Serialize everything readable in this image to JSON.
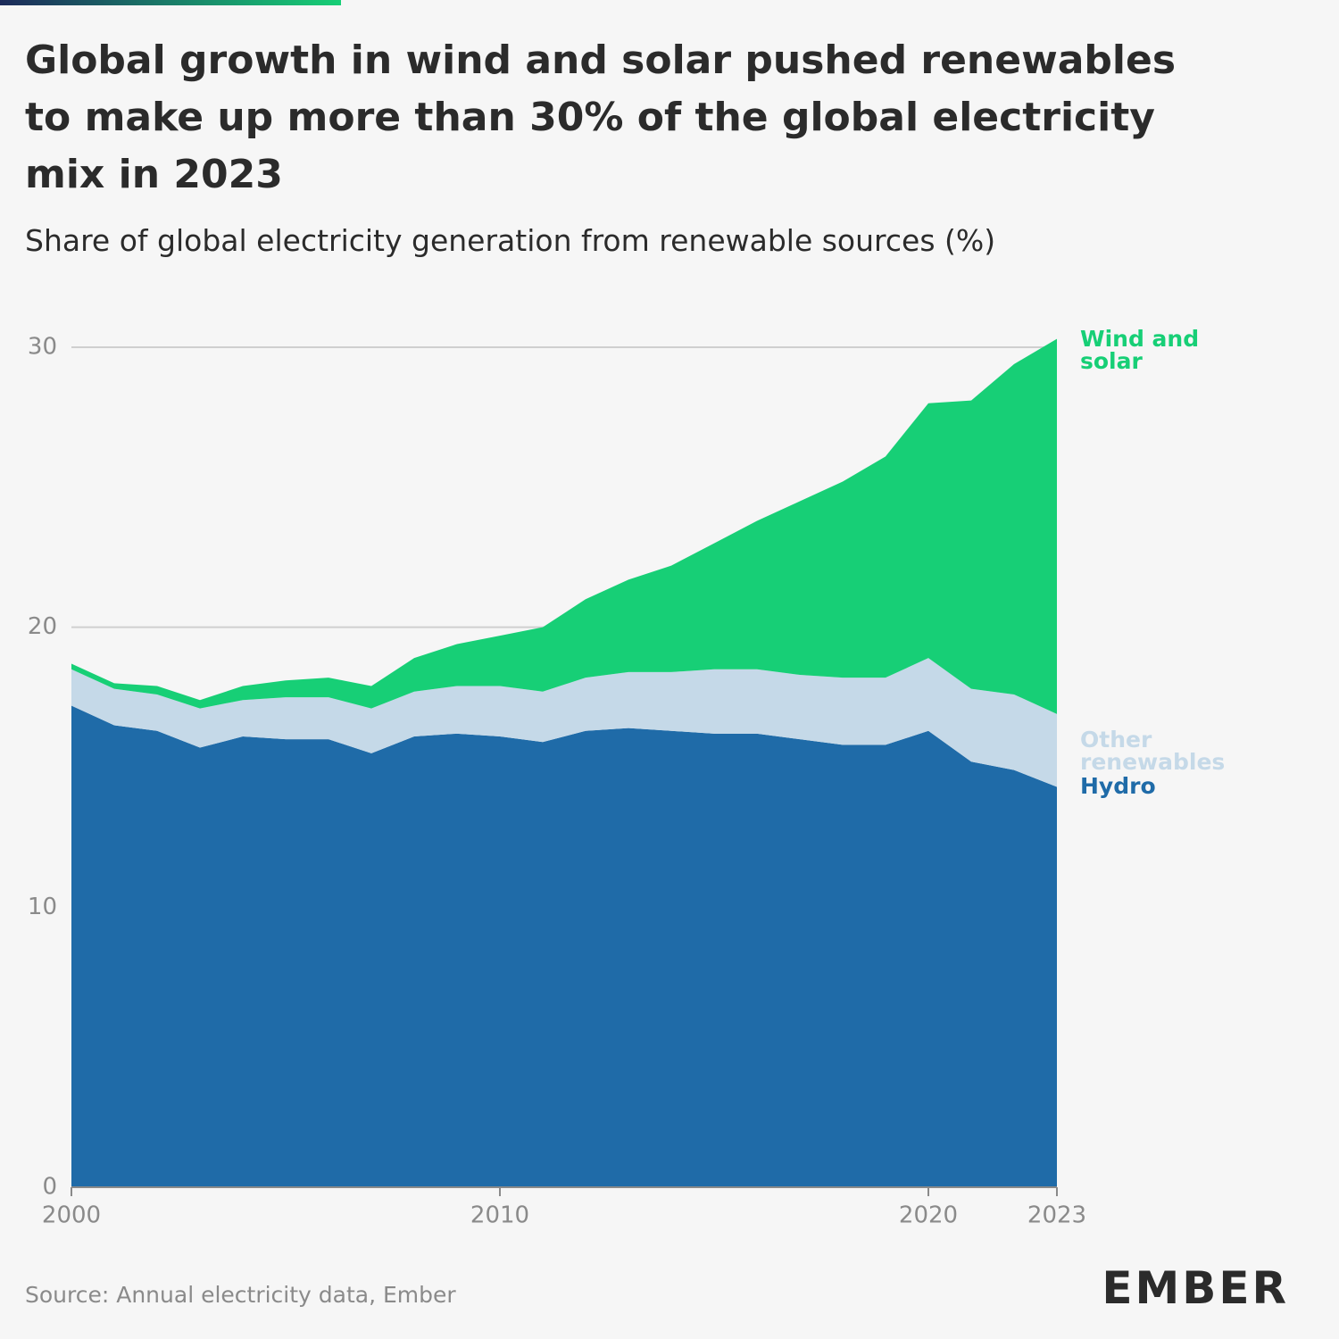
{
  "chart_data": {
    "type": "stacked-area",
    "title": "Global growth in wind and solar pushed renewables to make up more than 30% of the global electricity mix in 2023",
    "subtitle": "Share of global electricity generation from renewable sources (%)",
    "source": "Source: Annual electricity data, Ember",
    "logo": "EMBER",
    "x": [
      2000,
      2001,
      2002,
      2003,
      2004,
      2005,
      2006,
      2007,
      2008,
      2009,
      2010,
      2011,
      2012,
      2013,
      2014,
      2015,
      2016,
      2017,
      2018,
      2019,
      2020,
      2021,
      2022,
      2023
    ],
    "xlim": [
      2000,
      2023
    ],
    "xticks": [
      2000,
      2010,
      2020,
      2023
    ],
    "ylim": [
      0,
      30
    ],
    "yticks": [
      0,
      10,
      20,
      30
    ],
    "grid": true,
    "series": [
      {
        "name": "Hydro",
        "color": "#1f6ba8",
        "values": [
          17.2,
          16.5,
          16.3,
          15.7,
          16.1,
          16.0,
          16.0,
          15.5,
          16.1,
          16.2,
          16.1,
          15.9,
          16.3,
          16.4,
          16.3,
          16.2,
          16.2,
          16.0,
          15.8,
          15.8,
          16.3,
          15.2,
          14.9,
          14.3
        ]
      },
      {
        "name": "Other renewables",
        "color": "#c5d9e8",
        "values": [
          1.3,
          1.3,
          1.3,
          1.4,
          1.3,
          1.5,
          1.5,
          1.6,
          1.6,
          1.7,
          1.8,
          1.8,
          1.9,
          2.0,
          2.1,
          2.3,
          2.3,
          2.3,
          2.4,
          2.4,
          2.6,
          2.6,
          2.7,
          2.6
        ]
      },
      {
        "name": "Wind and solar",
        "color": "#17cf76",
        "values": [
          0.2,
          0.2,
          0.3,
          0.3,
          0.5,
          0.6,
          0.7,
          0.8,
          1.2,
          1.5,
          1.8,
          2.3,
          2.8,
          3.3,
          3.8,
          4.5,
          5.3,
          6.2,
          7.0,
          7.9,
          9.1,
          10.3,
          11.8,
          13.4
        ]
      }
    ]
  }
}
